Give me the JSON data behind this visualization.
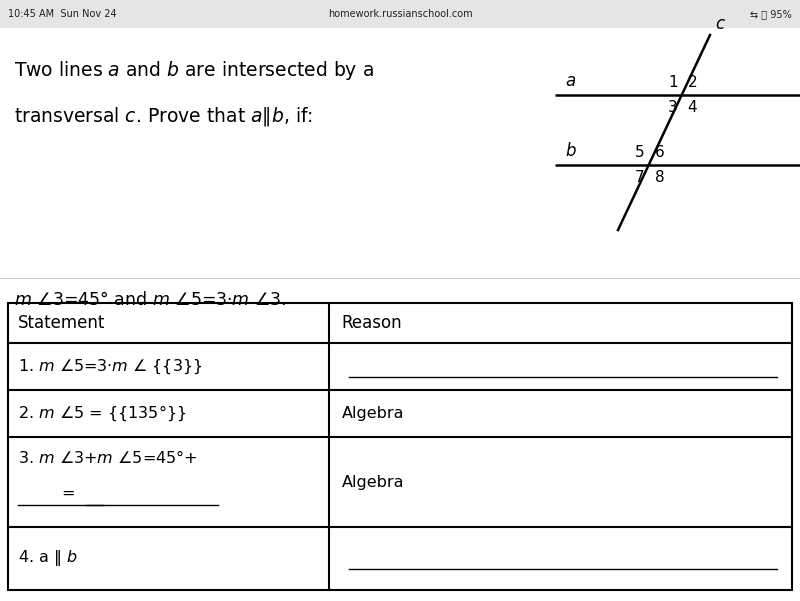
{
  "bg_color": "#f0f0f0",
  "content_bg": "#ffffff",
  "status_bar_left": "10:45 AM  Sun Nov 24",
  "status_bar_center": "homework.russianschool.com",
  "status_bar_right": "95%",
  "header_line1": "Two lines $\\mathit{a}$ and $\\mathit{b}$ are intersected by a",
  "header_line2": "transversal $\\mathit{c}$. Prove that $\\mathit{a}$$\\|$$\\mathit{b}$, if:",
  "condition": "$m$ $\\angle$3=45° and $m$ $\\angle$5=3·$m$ $\\angle$3.",
  "table_header_stmt": "Statement",
  "table_header_reason": "Reason",
  "row1_stmt": "1. $m$ $\\angle$5=3·$m$ $\\angle$ {{3}}",
  "row2_stmt": "2. $m$ $\\angle$5 = {{135°}}",
  "row2_reason": "Algebra",
  "row3_stmt_line1": "3. $m$ $\\angle$3+$m$ $\\angle$5=45°+",
  "row3_reason": "Algebra",
  "row4_stmt": "4. a ‖ $\\mathit{b}$",
  "diag_line_a_label": "$\\mathit{a}$",
  "diag_line_b_label": "$\\mathit{b}$",
  "diag_transversal_label": "$\\mathit{c}$",
  "angle_labels_top": [
    "1",
    "2",
    "3",
    "4"
  ],
  "angle_labels_bot": [
    "5",
    "6",
    "7",
    "8"
  ]
}
